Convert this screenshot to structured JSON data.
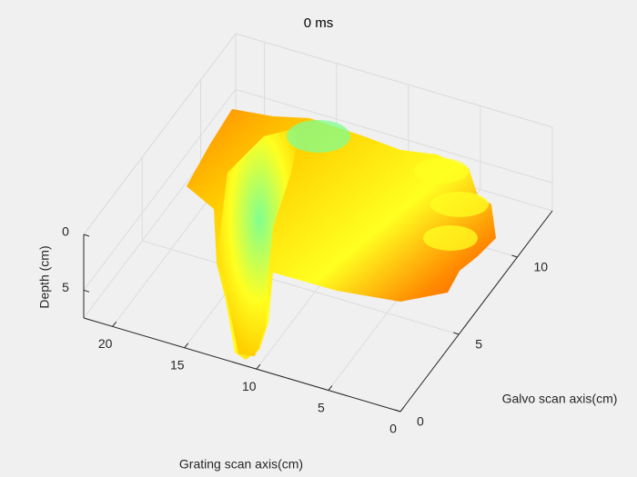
{
  "chart_data": {
    "type": "surface3d",
    "title": "0 ms",
    "xlabel": "Grating scan axis(cm)",
    "ylabel": "Galvo scan axis(cm)",
    "zlabel": "Depth (cm)",
    "xlim": [
      0,
      22
    ],
    "xticks": [
      0,
      5,
      10,
      15,
      20
    ],
    "ylim": [
      0,
      13
    ],
    "yticks": [
      0,
      5,
      10
    ],
    "zlim": [
      0,
      7.5
    ],
    "zticks": [
      0,
      5
    ],
    "zdir": "reverse",
    "grid": true,
    "colormap": [
      "#ff3000",
      "#ff8a00",
      "#ffd000",
      "#ffff20",
      "#80ff90"
    ]
  }
}
